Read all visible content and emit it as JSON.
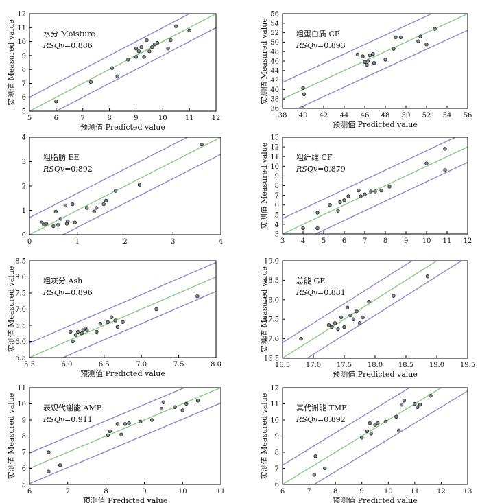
{
  "chart_data": [
    {
      "type": "scatter",
      "label_cn": "水分",
      "label_en": "Moisture",
      "rsq_label": "RSQv",
      "rsq_value": "=0.886",
      "xlabel_cn": "预测值",
      "xlabel_en": "Predicted value",
      "ylabel_cn": "实测值",
      "ylabel_en": "Measured value",
      "xlim": [
        5,
        12
      ],
      "ylim": [
        5,
        12
      ],
      "xticks": [
        "5",
        "6",
        "7",
        "8",
        "9",
        "10",
        "11",
        "12"
      ],
      "yticks": [
        "5",
        "6",
        "7",
        "8",
        "9",
        "10",
        "11",
        "12"
      ],
      "points": [
        [
          6.0,
          5.7
        ],
        [
          7.3,
          7.1
        ],
        [
          8.1,
          8.1
        ],
        [
          8.3,
          7.5
        ],
        [
          8.7,
          8.7
        ],
        [
          9.0,
          8.9
        ],
        [
          9.0,
          9.5
        ],
        [
          9.1,
          9.3
        ],
        [
          9.2,
          9.6
        ],
        [
          9.3,
          8.9
        ],
        [
          9.4,
          10.1
        ],
        [
          9.5,
          9.3
        ],
        [
          9.6,
          9.6
        ],
        [
          9.7,
          9.8
        ],
        [
          9.8,
          9.9
        ],
        [
          10.2,
          9.5
        ],
        [
          10.3,
          10.1
        ],
        [
          10.5,
          11.1
        ],
        [
          11.0,
          10.8
        ]
      ],
      "fit": [
        5,
        12
      ],
      "band": 1.0
    },
    {
      "type": "scatter",
      "label_cn": "粗蛋白质",
      "label_en": "CP",
      "rsq_label": "RSQv",
      "rsq_value": "=0.893",
      "xlabel_cn": "预测值",
      "xlabel_en": "Predicted value",
      "ylabel_cn": "实测值",
      "ylabel_en": "Measured value",
      "xlim": [
        38,
        56
      ],
      "ylim": [
        36,
        56
      ],
      "xticks": [
        "38",
        "40",
        "42",
        "44",
        "46",
        "48",
        "50",
        "52",
        "54",
        "56"
      ],
      "yticks": [
        "36",
        "38",
        "40",
        "42",
        "44",
        "46",
        "48",
        "50",
        "52",
        "54",
        "56"
      ],
      "points": [
        [
          40.0,
          40.3
        ],
        [
          40.1,
          39.0
        ],
        [
          45.3,
          47.4
        ],
        [
          45.8,
          47.0
        ],
        [
          46.0,
          45.8
        ],
        [
          46.2,
          45.2
        ],
        [
          46.3,
          46.0
        ],
        [
          46.5,
          47.2
        ],
        [
          46.8,
          47.5
        ],
        [
          46.9,
          45.6
        ],
        [
          48.0,
          46.3
        ],
        [
          48.8,
          48.6
        ],
        [
          49.0,
          51.0
        ],
        [
          49.5,
          51.0
        ],
        [
          51.2,
          50.2
        ],
        [
          51.4,
          51.2
        ],
        [
          52.0,
          49.5
        ],
        [
          52.8,
          52.8
        ]
      ],
      "fit": [
        38,
        56
      ],
      "band": 3.5
    },
    {
      "type": "scatter",
      "label_cn": "粗脂肪",
      "label_en": "EE",
      "rsq_label": "RSQv",
      "rsq_value": "=0.892",
      "xlabel_cn": "",
      "xlabel_en": "",
      "ylabel_cn": "",
      "ylabel_en": "",
      "xlim": [
        0,
        4
      ],
      "ylim": [
        0,
        4
      ],
      "xticks": [
        "0",
        "1",
        "2",
        "3",
        "4"
      ],
      "yticks": [
        "0",
        "1",
        "2",
        "3",
        "4"
      ],
      "points": [
        [
          0.25,
          0.5
        ],
        [
          0.3,
          0.42
        ],
        [
          0.35,
          0.45
        ],
        [
          0.5,
          0.35
        ],
        [
          0.55,
          0.95
        ],
        [
          0.6,
          0.4
        ],
        [
          0.65,
          0.65
        ],
        [
          0.75,
          1.2
        ],
        [
          0.78,
          0.45
        ],
        [
          0.8,
          0.55
        ],
        [
          0.9,
          1.25
        ],
        [
          0.95,
          0.5
        ],
        [
          1.2,
          1.1
        ],
        [
          1.35,
          0.95
        ],
        [
          1.4,
          1.1
        ],
        [
          1.55,
          1.25
        ],
        [
          1.6,
          1.4
        ],
        [
          1.8,
          1.8
        ],
        [
          2.3,
          2.05
        ],
        [
          3.6,
          3.7
        ]
      ],
      "fit": [
        0,
        4
      ],
      "band": 0.7
    },
    {
      "type": "scatter",
      "label_cn": "粗纤维",
      "label_en": "CF",
      "rsq_label": "RSQv",
      "rsq_value": "=0.879",
      "xlabel_cn": "",
      "xlabel_en": "",
      "ylabel_cn": "实测值",
      "ylabel_en": "Measured value",
      "xlim": [
        3,
        12
      ],
      "ylim": [
        3,
        13
      ],
      "xticks": [
        "3",
        "4",
        "5",
        "6",
        "7",
        "8",
        "9",
        "10",
        "11",
        "12"
      ],
      "yticks": [
        "3",
        "4",
        "5",
        "6",
        "7",
        "8",
        "9",
        "10",
        "11",
        "12",
        "13"
      ],
      "points": [
        [
          4.0,
          3.6
        ],
        [
          4.7,
          3.6
        ],
        [
          4.7,
          5.2
        ],
        [
          5.3,
          6.0
        ],
        [
          5.7,
          5.4
        ],
        [
          5.8,
          6.3
        ],
        [
          6.0,
          6.5
        ],
        [
          6.2,
          6.9
        ],
        [
          6.7,
          7.5
        ],
        [
          6.8,
          6.9
        ],
        [
          7.0,
          7.1
        ],
        [
          7.3,
          7.4
        ],
        [
          7.5,
          7.4
        ],
        [
          7.8,
          7.5
        ],
        [
          8.2,
          7.9
        ],
        [
          10.0,
          10.3
        ],
        [
          10.9,
          11.8
        ],
        [
          10.9,
          9.6
        ]
      ],
      "fit": [
        3,
        12
      ],
      "band": 1.6
    },
    {
      "type": "scatter",
      "label_cn": "粗灰分",
      "label_en": "Ash",
      "rsq_label": "RSQv",
      "rsq_value": "=0.896",
      "xlabel_cn": "预测值",
      "xlabel_en": "Predicted value",
      "ylabel_cn": "实测值",
      "ylabel_en": "Measured value",
      "xlim": [
        5.5,
        8.0
      ],
      "ylim": [
        5.5,
        8.5
      ],
      "xticks": [
        "5.5",
        "6.0",
        "6.5",
        "7.0",
        "7.5",
        "8.0"
      ],
      "yticks": [
        "5.5",
        "6.0",
        "6.5",
        "7.0",
        "7.5",
        "8.0",
        "8.5"
      ],
      "points": [
        [
          6.05,
          6.3
        ],
        [
          6.08,
          6.0
        ],
        [
          6.12,
          6.2
        ],
        [
          6.15,
          6.3
        ],
        [
          6.2,
          6.25
        ],
        [
          6.22,
          6.35
        ],
        [
          6.25,
          6.4
        ],
        [
          6.27,
          6.35
        ],
        [
          6.4,
          6.3
        ],
        [
          6.45,
          6.55
        ],
        [
          6.55,
          6.6
        ],
        [
          6.6,
          6.75
        ],
        [
          6.65,
          6.65
        ],
        [
          6.68,
          6.45
        ],
        [
          6.75,
          6.6
        ],
        [
          7.2,
          7.0
        ],
        [
          7.75,
          7.4
        ]
      ],
      "fit": [
        5.5,
        8.0
      ],
      "band": 0.45
    },
    {
      "type": "scatter",
      "label_cn": "总能",
      "label_en": "GE",
      "rsq_label": "RSQv",
      "rsq_value": "=0.881",
      "xlabel_cn": "预测值",
      "xlabel_en": "Predicted value",
      "ylabel_cn": "实测值",
      "ylabel_en": "Measured value",
      "xlim": [
        16.5,
        19.5
      ],
      "ylim": [
        16.5,
        19.0
      ],
      "xticks": [
        "16.5",
        "17.0",
        "17.5",
        "18.0",
        "18.5",
        "19.0",
        "19.5"
      ],
      "yticks": [
        "16.5",
        "17.0",
        "17.5",
        "18.0",
        "18.5",
        "19.0"
      ],
      "points": [
        [
          16.8,
          17.0
        ],
        [
          17.25,
          17.35
        ],
        [
          17.3,
          17.3
        ],
        [
          17.35,
          17.4
        ],
        [
          17.4,
          17.25
        ],
        [
          17.45,
          17.55
        ],
        [
          17.5,
          17.3
        ],
        [
          17.55,
          17.8
        ],
        [
          17.6,
          17.6
        ],
        [
          17.65,
          17.5
        ],
        [
          17.7,
          17.7
        ],
        [
          17.75,
          17.4
        ],
        [
          17.8,
          17.55
        ],
        [
          17.9,
          17.95
        ],
        [
          18.3,
          18.1
        ],
        [
          18.85,
          18.6
        ]
      ],
      "fit": [
        16.5,
        19.5
      ],
      "band": 0.4
    },
    {
      "type": "scatter",
      "label_cn": "表观代谢能",
      "label_en": "AME",
      "rsq_label": "RSQv",
      "rsq_value": "=0.911",
      "xlabel_cn": "预测值",
      "xlabel_en": "Predicted value",
      "ylabel_cn": "实测值",
      "ylabel_en": "Measured value",
      "xlim": [
        6,
        11
      ],
      "ylim": [
        5,
        11
      ],
      "xticks": [
        "6",
        "7",
        "8",
        "9",
        "10",
        "11"
      ],
      "yticks": [
        "5",
        "6",
        "7",
        "8",
        "9",
        "10",
        "11"
      ],
      "points": [
        [
          6.5,
          5.8
        ],
        [
          6.5,
          7.0
        ],
        [
          6.8,
          6.2
        ],
        [
          8.05,
          8.05
        ],
        [
          8.1,
          8.3
        ],
        [
          8.3,
          8.75
        ],
        [
          8.4,
          8.1
        ],
        [
          8.5,
          8.75
        ],
        [
          8.6,
          8.8
        ],
        [
          8.9,
          8.9
        ],
        [
          9.2,
          9.0
        ],
        [
          9.45,
          9.7
        ],
        [
          9.5,
          10.1
        ],
        [
          9.8,
          9.8
        ],
        [
          10.0,
          9.6
        ],
        [
          10.1,
          10.0
        ],
        [
          10.4,
          10.2
        ]
      ],
      "fit": [
        6,
        11
      ],
      "band": 0.95
    },
    {
      "type": "scatter",
      "label_cn": "真代谢能",
      "label_en": "TME",
      "rsq_label": "RSQv",
      "rsq_value": "=0.892",
      "xlabel_cn": "预测值",
      "xlabel_en": "Predicted value",
      "ylabel_cn": "实测值",
      "ylabel_en": "Measured value",
      "xlim": [
        6,
        13
      ],
      "ylim": [
        6,
        12
      ],
      "xticks": [
        "6",
        "7",
        "8",
        "9",
        "10",
        "11",
        "12",
        "13"
      ],
      "yticks": [
        "6",
        "7",
        "8",
        "9",
        "10",
        "11",
        "12"
      ],
      "points": [
        [
          7.2,
          6.6
        ],
        [
          7.25,
          7.75
        ],
        [
          7.6,
          7.0
        ],
        [
          9.0,
          8.9
        ],
        [
          9.2,
          9.3
        ],
        [
          9.3,
          9.8
        ],
        [
          9.35,
          9.15
        ],
        [
          9.5,
          9.7
        ],
        [
          9.6,
          9.8
        ],
        [
          9.9,
          9.9
        ],
        [
          10.3,
          10.2
        ],
        [
          10.4,
          9.35
        ],
        [
          10.5,
          10.95
        ],
        [
          10.6,
          11.2
        ],
        [
          11.0,
          11.0
        ],
        [
          11.1,
          10.8
        ],
        [
          11.2,
          10.95
        ],
        [
          11.6,
          11.5
        ]
      ],
      "fit": [
        6,
        13
      ],
      "band": 1.2
    }
  ],
  "colors": {
    "fit_line": "#93c28f",
    "band_line": "#8c8cc9",
    "point_fill": "#7d8b8b",
    "axes": "#000000"
  }
}
